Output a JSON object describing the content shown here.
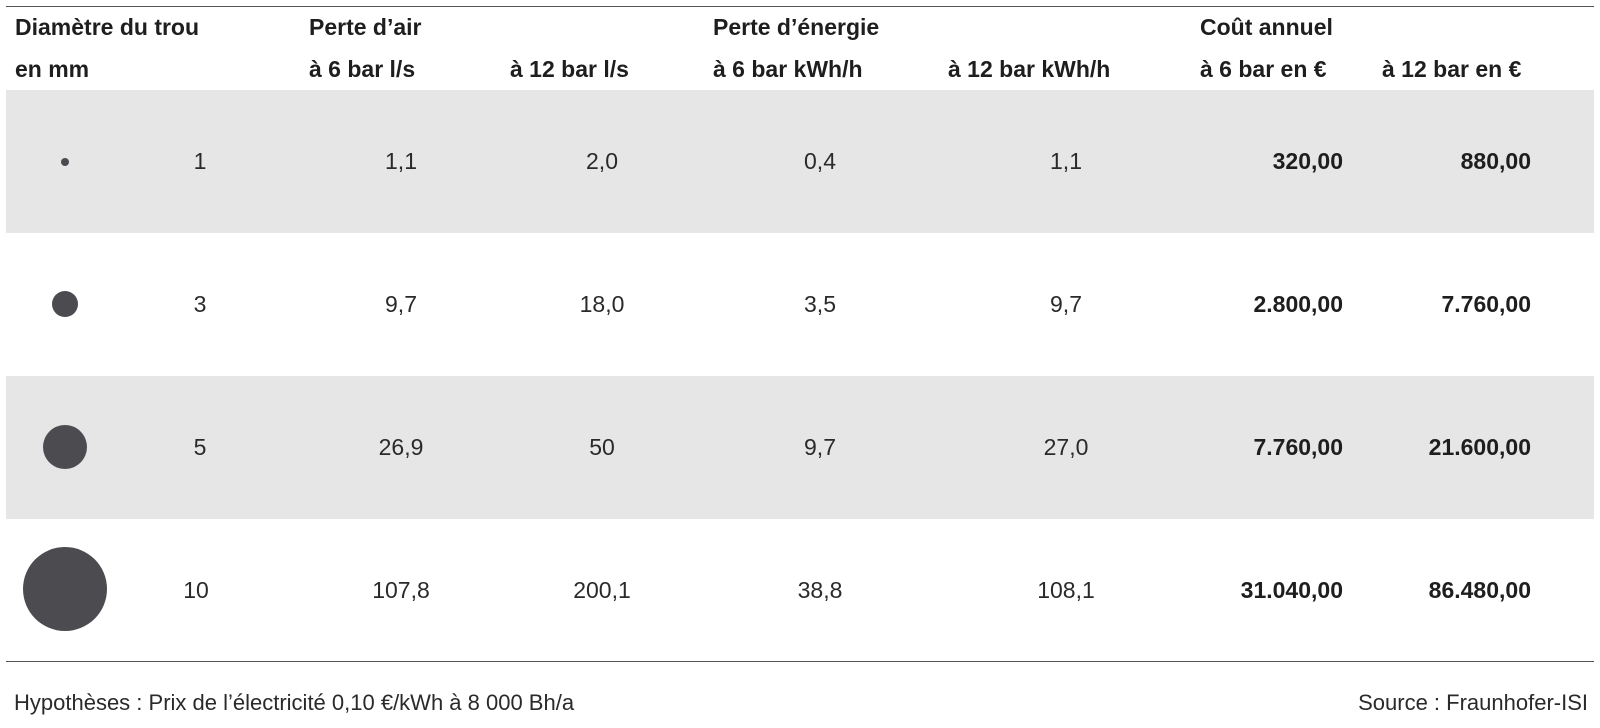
{
  "header": {
    "line1": {
      "diameter": "Diamètre du trou",
      "air_loss": "Perte d’air",
      "energy_loss": "Perte d’énergie",
      "annual_cost": "Coût annuel"
    },
    "line2": {
      "mm": "en mm",
      "air6": "à 6 bar l/s",
      "air12": "à 12 bar l/s",
      "energy6": "à 6 bar kWh/h",
      "energy12": "à 12 bar kWh/h",
      "cost6": "à 6 bar en €",
      "cost12": "à 12 bar en €"
    }
  },
  "rows": [
    {
      "diameter": "1",
      "air6": "1,1",
      "air12": "2,0",
      "energy6": "0,4",
      "energy12": "1,1",
      "cost6": "320,00",
      "cost12": "880,00"
    },
    {
      "diameter": "3",
      "air6": "9,7",
      "air12": "18,0",
      "energy6": "3,5",
      "energy12": "9,7",
      "cost6": "2.800,00",
      "cost12": "7.760,00"
    },
    {
      "diameter": "5",
      "air6": "26,9",
      "air12": "50",
      "energy6": "9,7",
      "energy12": "27,0",
      "cost6": "7.760,00",
      "cost12": "21.600,00"
    },
    {
      "diameter": "10",
      "air6": "107,8",
      "air12": "200,1",
      "energy6": "38,8",
      "energy12": "108,1",
      "cost6": "31.040,00",
      "cost12": "86.480,00"
    }
  ],
  "footer": {
    "assumptions": "Hypothèses : Prix de l’électricité 0,10 €/kWh à 8 000 Bh/a",
    "source": "Source : Fraunhofer-ISI"
  },
  "colors": {
    "shade": "#e6e6e6",
    "dot": "#4b4b50",
    "rule": "#555555"
  }
}
